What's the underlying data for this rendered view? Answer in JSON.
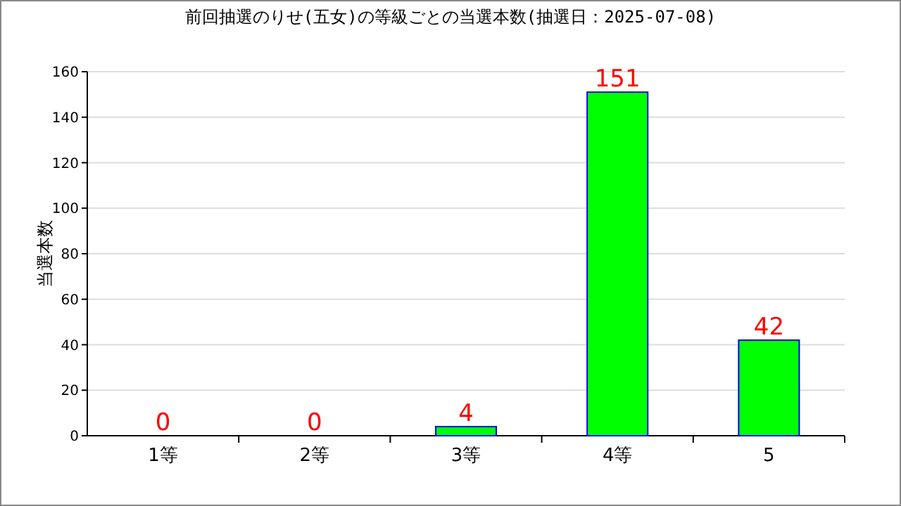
{
  "chart_data": {
    "type": "bar",
    "title": "前回抽選のりせ(五女)の等級ごとの当選本数(抽選日：2025-07-08)",
    "ylabel": "当選本数",
    "categories": [
      "1等",
      "2等",
      "3等",
      "4等",
      "5"
    ],
    "series": [
      {
        "color": "#00ff00",
        "values": [
          0,
          0,
          4,
          151,
          42
        ]
      }
    ],
    "ylim": [
      0,
      160
    ],
    "yticks": [
      0,
      20,
      40,
      60,
      80,
      100,
      120,
      140,
      160
    ],
    "grid": "y",
    "data_labels": true
  }
}
